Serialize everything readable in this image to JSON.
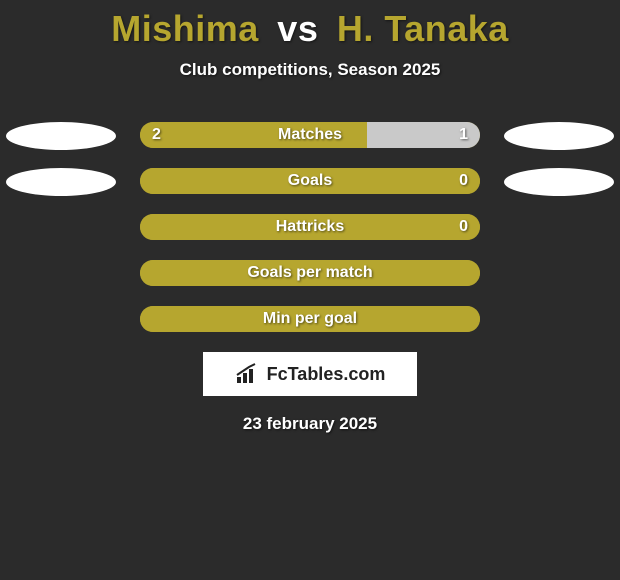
{
  "title": {
    "player1": "Mishima",
    "vs": "vs",
    "player2": "H. Tanaka",
    "player1_color": "#b6a62f",
    "vs_color": "#ffffff",
    "player2_color": "#b6a62f"
  },
  "subtitle": "Club competitions, Season 2025",
  "background_color": "#2b2b2b",
  "bar_track_color": "#b6a62f",
  "oval_color": "#ffffff",
  "stats": [
    {
      "label": "Matches",
      "left_value": "2",
      "right_value": "1",
      "left_pct": 66.7,
      "right_pct": 33.3,
      "left_color": "#b6a62f",
      "right_color": "#c9c9c9",
      "show_left_oval": true,
      "show_right_oval": true
    },
    {
      "label": "Goals",
      "left_value": "",
      "right_value": "0",
      "left_pct": 100,
      "right_pct": 0,
      "left_color": "#b6a62f",
      "right_color": "#b6a62f",
      "show_left_oval": true,
      "show_right_oval": true
    },
    {
      "label": "Hattricks",
      "left_value": "",
      "right_value": "0",
      "left_pct": 100,
      "right_pct": 0,
      "left_color": "#b6a62f",
      "right_color": "#b6a62f",
      "show_left_oval": false,
      "show_right_oval": false
    },
    {
      "label": "Goals per match",
      "left_value": "",
      "right_value": "",
      "left_pct": 100,
      "right_pct": 0,
      "left_color": "#b6a62f",
      "right_color": "#b6a62f",
      "show_left_oval": false,
      "show_right_oval": false
    },
    {
      "label": "Min per goal",
      "left_value": "",
      "right_value": "",
      "left_pct": 100,
      "right_pct": 0,
      "left_color": "#b6a62f",
      "right_color": "#b6a62f",
      "show_left_oval": false,
      "show_right_oval": false
    }
  ],
  "logo_text": "FcTables.com",
  "date": "23 february 2025"
}
